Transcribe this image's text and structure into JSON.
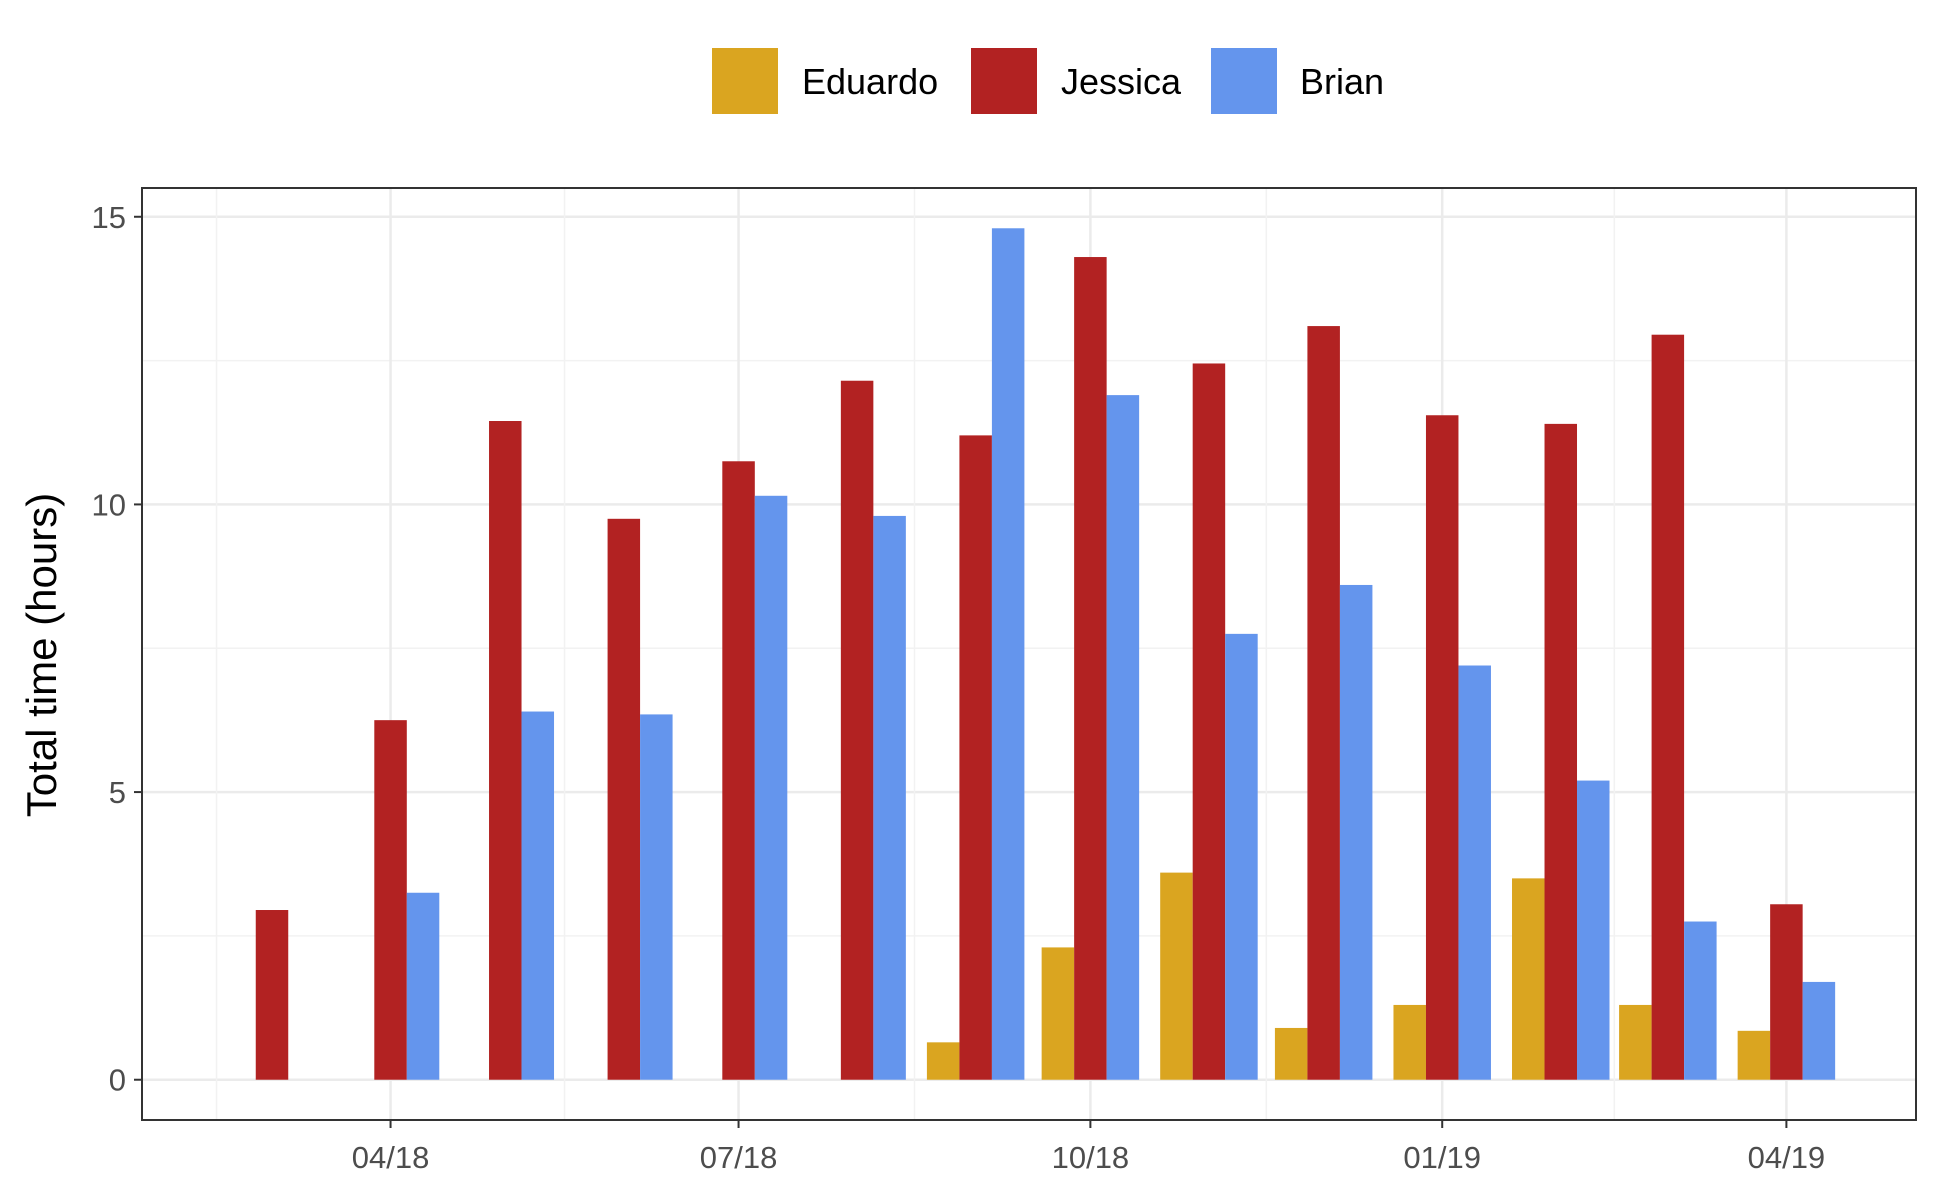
{
  "chart_data": {
    "type": "bar",
    "title": "",
    "xlabel": "",
    "ylabel": "Total time (hours)",
    "ylim": [
      -0.7,
      15.5
    ],
    "y_ticks": [
      0,
      5,
      10,
      15
    ],
    "x_ticks": [
      {
        "label": "04/18",
        "date": "2018-04-01"
      },
      {
        "label": "07/18",
        "date": "2018-07-01"
      },
      {
        "label": "10/18",
        "date": "2018-10-01"
      },
      {
        "label": "01/19",
        "date": "2019-01-01"
      },
      {
        "label": "04/19",
        "date": "2019-04-01"
      }
    ],
    "grid": true,
    "legend_position": "top",
    "categories": [
      "2018-03",
      "2018-04",
      "2018-05",
      "2018-06",
      "2018-07",
      "2018-08",
      "2018-09",
      "2018-10",
      "2018-11",
      "2018-12",
      "2019-01",
      "2019-02",
      "2019-03",
      "2019-04"
    ],
    "series": [
      {
        "name": "Eduardo",
        "color": "#DAA520",
        "values": [
          null,
          null,
          null,
          null,
          null,
          null,
          0.65,
          2.3,
          3.6,
          0.9,
          1.3,
          3.5,
          1.3,
          0.85
        ]
      },
      {
        "name": "Jessica",
        "color": "#B22222",
        "values": [
          2.95,
          6.25,
          11.45,
          9.75,
          10.75,
          12.15,
          11.2,
          14.3,
          12.45,
          13.1,
          11.55,
          11.4,
          12.95,
          3.05
        ]
      },
      {
        "name": "Brian",
        "color": "#6495ED",
        "values": [
          null,
          3.25,
          6.4,
          6.35,
          10.15,
          9.8,
          14.8,
          11.9,
          7.75,
          8.6,
          7.2,
          5.2,
          2.75,
          1.7
        ]
      }
    ]
  }
}
